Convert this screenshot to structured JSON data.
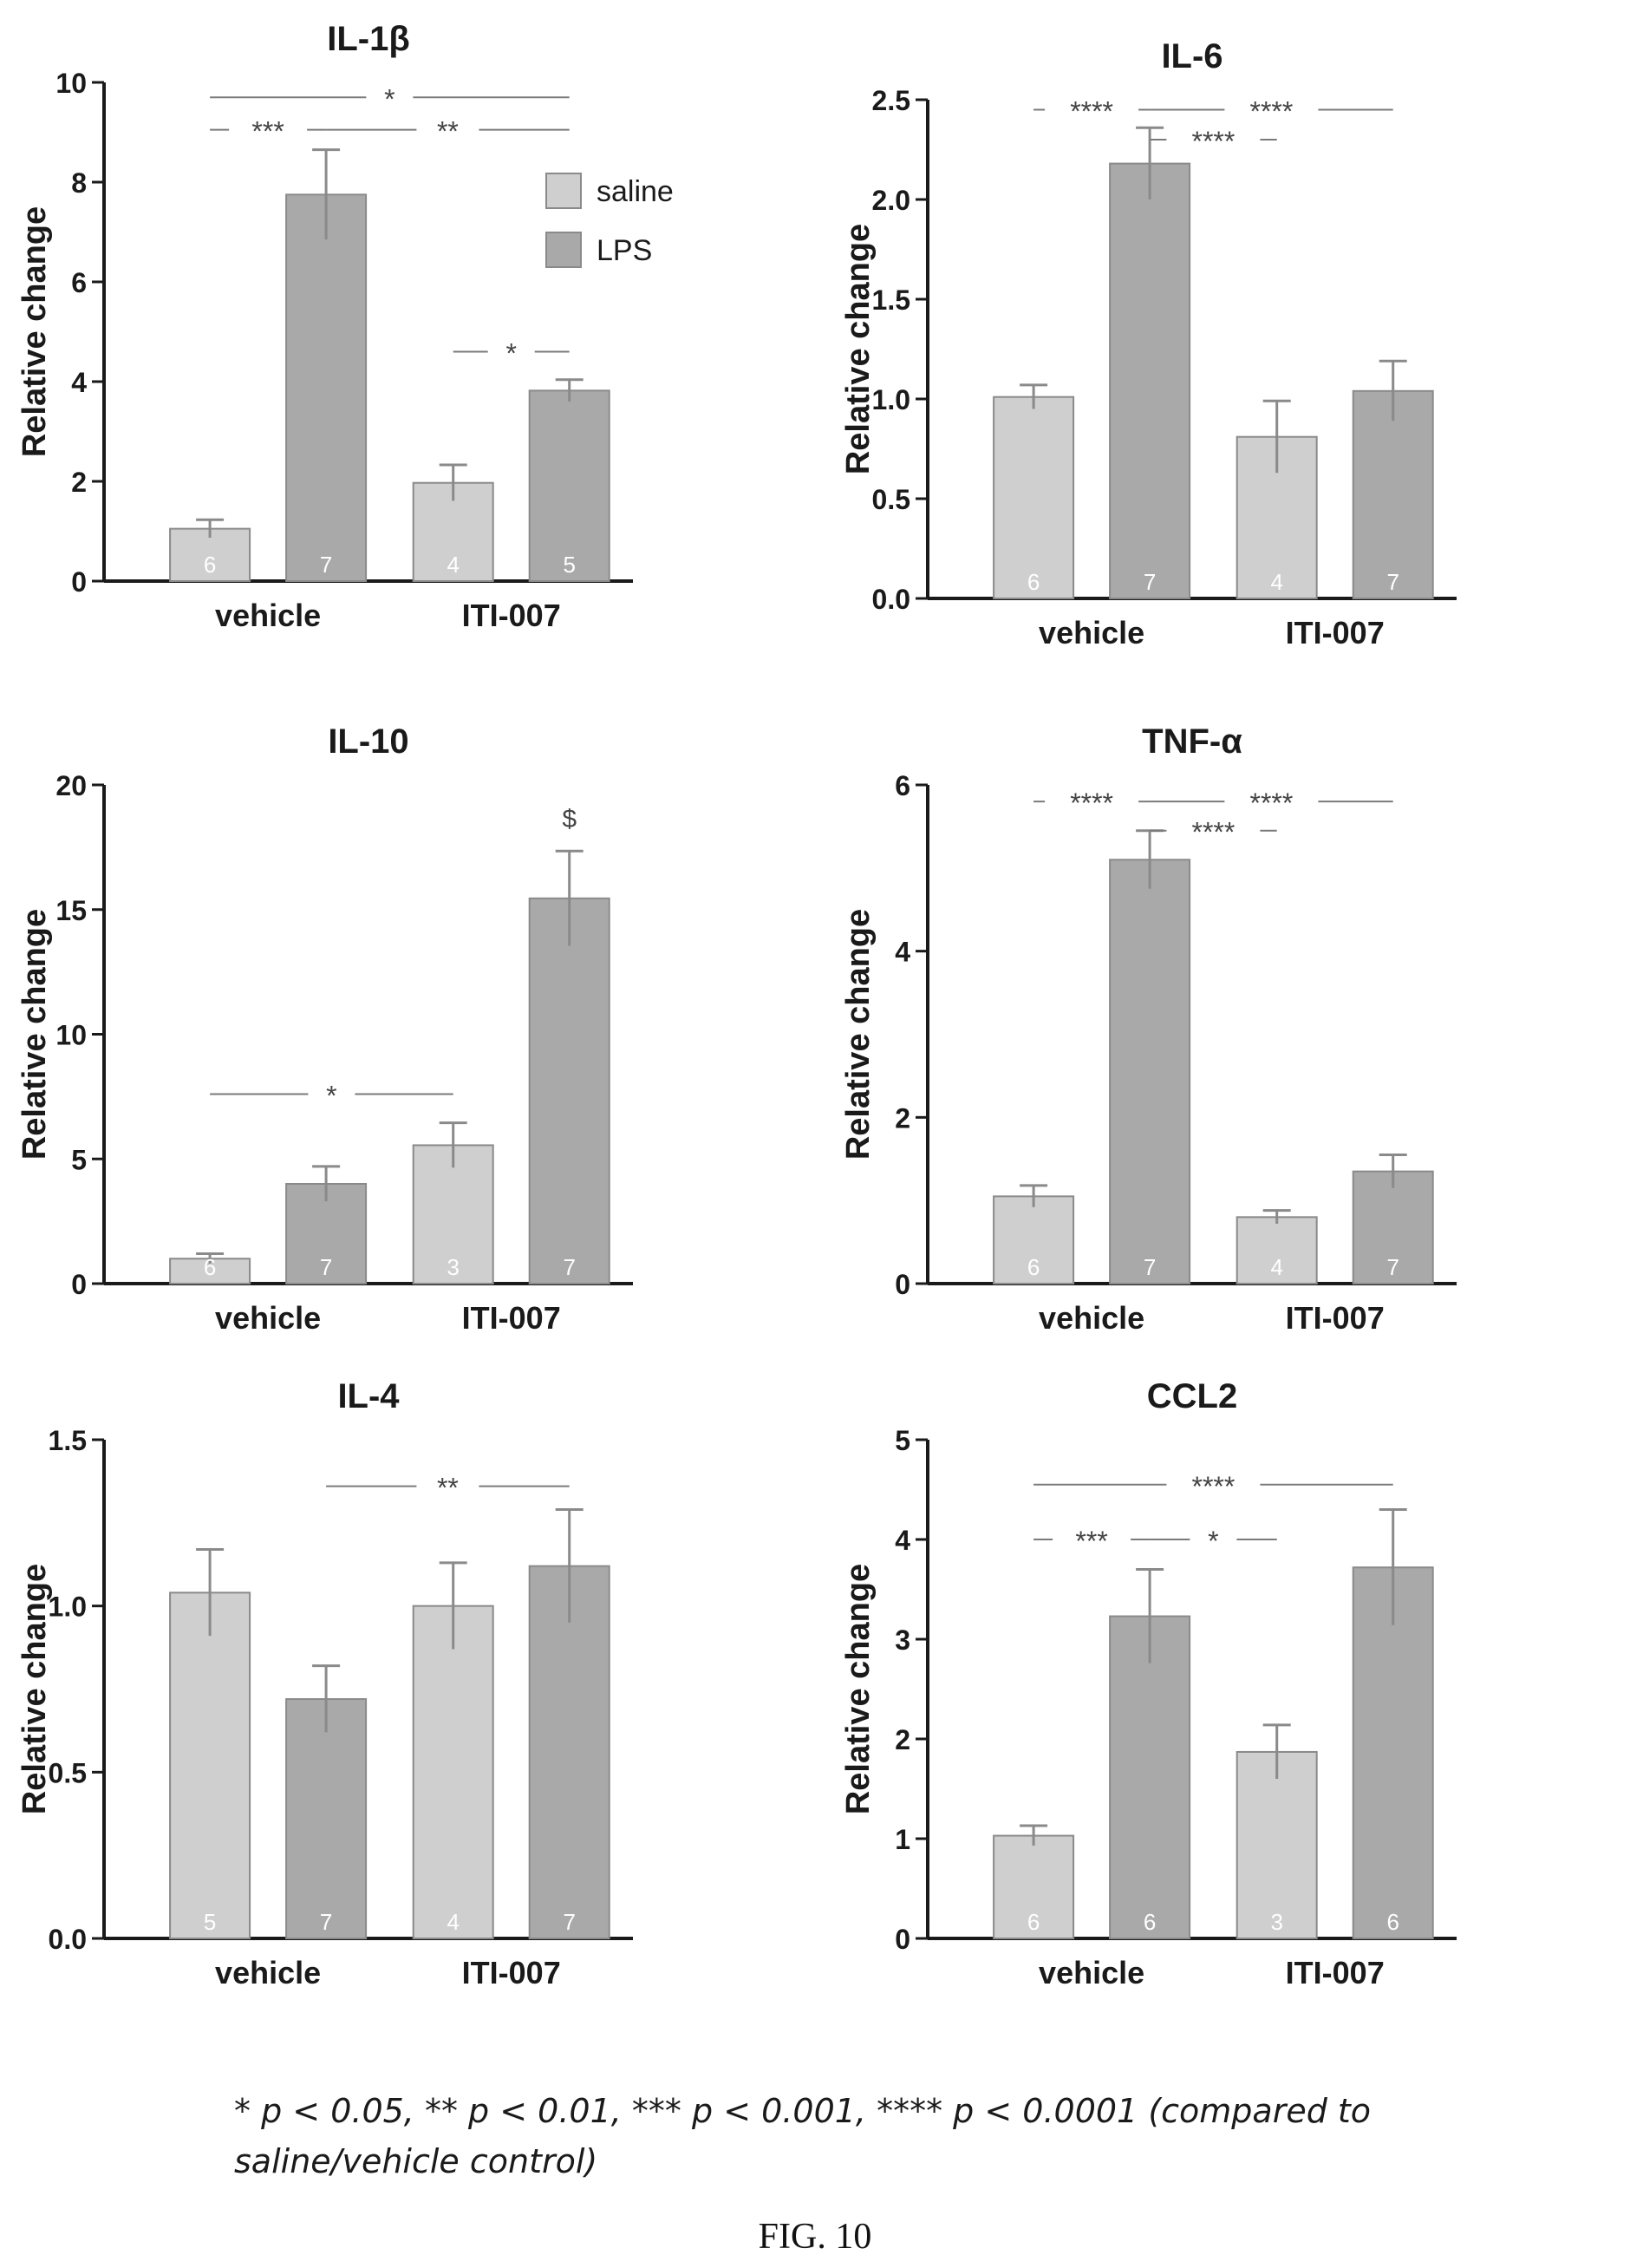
{
  "chart_data": [
    {
      "type": "bar",
      "title": "IL-1β",
      "ylabel": "Relative change",
      "categories": [
        "vehicle",
        "ITI-007"
      ],
      "ylim": [
        0,
        10
      ],
      "yticks": [
        0,
        2,
        4,
        6,
        8,
        10
      ],
      "ytick_labels": [
        "0",
        "2",
        "4",
        "6",
        "8",
        "10"
      ],
      "legend": {
        "position": "top-right",
        "entries": [
          "saline",
          "LPS"
        ]
      },
      "series": [
        {
          "name": "saline",
          "values": [
            1.05,
            1.97
          ],
          "errors": [
            0.18,
            0.36
          ],
          "n": [
            "6",
            "4"
          ]
        },
        {
          "name": "LPS",
          "values": [
            7.75,
            3.82
          ],
          "errors": [
            0.9,
            0.22
          ],
          "n": [
            "7",
            "5"
          ]
        }
      ],
      "annotations": [
        {
          "label": "*",
          "from": [
            0,
            0
          ],
          "to": [
            1,
            1
          ],
          "level": 9.7
        },
        {
          "label": "***",
          "from": [
            0,
            0
          ],
          "to": [
            0,
            1
          ],
          "level": 9.05
        },
        {
          "label": "**",
          "from": [
            0,
            1
          ],
          "to": [
            1,
            1
          ],
          "level": 9.05
        },
        {
          "label": "*",
          "from": [
            1,
            0
          ],
          "to": [
            1,
            1
          ],
          "level": 4.6
        }
      ]
    },
    {
      "type": "bar",
      "title": "IL-6",
      "ylabel": "Relative change",
      "categories": [
        "vehicle",
        "ITI-007"
      ],
      "ylim": [
        0,
        2.5
      ],
      "yticks": [
        0,
        0.5,
        1,
        1.5,
        2,
        2.5
      ],
      "ytick_labels": [
        "0.0",
        "0.5",
        "1.0",
        "1.5",
        "2.0",
        "2.5"
      ],
      "series": [
        {
          "name": "saline",
          "values": [
            1.01,
            0.81
          ],
          "errors": [
            0.06,
            0.18
          ],
          "n": [
            "6",
            "4"
          ]
        },
        {
          "name": "LPS",
          "values": [
            2.18,
            1.04
          ],
          "errors": [
            0.18,
            0.15
          ],
          "n": [
            "7",
            "7"
          ]
        }
      ],
      "annotations": [
        {
          "label": "****",
          "from": [
            0,
            0
          ],
          "to": [
            0,
            1
          ],
          "level": 2.45
        },
        {
          "label": "****",
          "from": [
            0,
            1
          ],
          "to": [
            1,
            1
          ],
          "level": 2.45
        },
        {
          "label": "****",
          "from": [
            0,
            1
          ],
          "to": [
            1,
            0
          ],
          "level": 2.3
        }
      ]
    },
    {
      "type": "bar",
      "title": "IL-10",
      "ylabel": "Relative change",
      "categories": [
        "vehicle",
        "ITI-007"
      ],
      "ylim": [
        0,
        20
      ],
      "yticks": [
        0,
        5,
        10,
        15,
        20
      ],
      "ytick_labels": [
        "0",
        "5",
        "10",
        "15",
        "20"
      ],
      "series": [
        {
          "name": "saline",
          "values": [
            1.0,
            5.55
          ],
          "errors": [
            0.2,
            0.9
          ],
          "n": [
            "6",
            "3"
          ]
        },
        {
          "name": "LPS",
          "values": [
            4.0,
            15.45
          ],
          "errors": [
            0.7,
            1.9
          ],
          "n": [
            "7",
            "7"
          ]
        }
      ],
      "annotations": [
        {
          "label": "*",
          "from": [
            0,
            0
          ],
          "to": [
            1,
            0
          ],
          "level": 7.6
        }
      ],
      "marks": [
        {
          "label": "$",
          "group": 1,
          "series": 1,
          "level": 18.3
        }
      ]
    },
    {
      "type": "bar",
      "title": "TNF-α",
      "ylabel": "Relative change",
      "categories": [
        "vehicle",
        "ITI-007"
      ],
      "ylim": [
        0,
        6
      ],
      "yticks": [
        0,
        2,
        4,
        6
      ],
      "ytick_labels": [
        "0",
        "2",
        "4",
        "6"
      ],
      "series": [
        {
          "name": "saline",
          "values": [
            1.05,
            0.8
          ],
          "errors": [
            0.13,
            0.08
          ],
          "n": [
            "6",
            "4"
          ]
        },
        {
          "name": "LPS",
          "values": [
            5.1,
            1.35
          ],
          "errors": [
            0.35,
            0.2
          ],
          "n": [
            "7",
            "7"
          ]
        }
      ],
      "annotations": [
        {
          "label": "****",
          "from": [
            0,
            0
          ],
          "to": [
            0,
            1
          ],
          "level": 5.8
        },
        {
          "label": "****",
          "from": [
            0,
            1
          ],
          "to": [
            1,
            1
          ],
          "level": 5.8
        },
        {
          "label": "****",
          "from": [
            0,
            1
          ],
          "to": [
            1,
            0
          ],
          "level": 5.45
        }
      ]
    },
    {
      "type": "bar",
      "title": "IL-4",
      "ylabel": "Relative change",
      "categories": [
        "vehicle",
        "ITI-007"
      ],
      "ylim": [
        0,
        1.5
      ],
      "yticks": [
        0,
        0.5,
        1,
        1.5
      ],
      "ytick_labels": [
        "0.0",
        "0.5",
        "1.0",
        "1.5"
      ],
      "series": [
        {
          "name": "saline",
          "values": [
            1.04,
            1.0
          ],
          "errors": [
            0.13,
            0.13
          ],
          "n": [
            "5",
            "4"
          ]
        },
        {
          "name": "LPS",
          "values": [
            0.72,
            1.12
          ],
          "errors": [
            0.1,
            0.17
          ],
          "n": [
            "7",
            "7"
          ]
        }
      ],
      "annotations": [
        {
          "label": "**",
          "from": [
            0,
            1
          ],
          "to": [
            1,
            1
          ],
          "level": 1.36
        }
      ]
    },
    {
      "type": "bar",
      "title": "CCL2",
      "ylabel": "Relative change",
      "categories": [
        "vehicle",
        "ITI-007"
      ],
      "ylim": [
        0,
        5
      ],
      "yticks": [
        0,
        1,
        2,
        3,
        4,
        5
      ],
      "ytick_labels": [
        "0",
        "1",
        "2",
        "3",
        "4",
        "5"
      ],
      "series": [
        {
          "name": "saline",
          "values": [
            1.03,
            1.87
          ],
          "errors": [
            0.1,
            0.27
          ],
          "n": [
            "6",
            "3"
          ]
        },
        {
          "name": "LPS",
          "values": [
            3.23,
            3.72
          ],
          "errors": [
            0.47,
            0.58
          ],
          "n": [
            "6",
            "6"
          ]
        }
      ],
      "annotations": [
        {
          "label": "****",
          "from": [
            0,
            0
          ],
          "to": [
            1,
            1
          ],
          "level": 4.55
        },
        {
          "label": "***",
          "from": [
            0,
            0
          ],
          "to": [
            0,
            1
          ],
          "level": 4.0
        },
        {
          "label": "*",
          "from": [
            0,
            1
          ],
          "to": [
            1,
            0
          ],
          "level": 4.0
        }
      ]
    }
  ],
  "footnote": "* p < 0.05, ** p < 0.01, *** p < 0.001, **** p < 0.0001 (compared to saline/vehicle control)",
  "figure_label": "FIG. 10",
  "colors": {
    "saline": "#cfcfcf",
    "lps": "#a9a9a9",
    "bar_edge": "#8a8a8a",
    "axis": "#1a1a1a",
    "annotation": "#7a7a7a",
    "n_label": "#ffffff"
  }
}
